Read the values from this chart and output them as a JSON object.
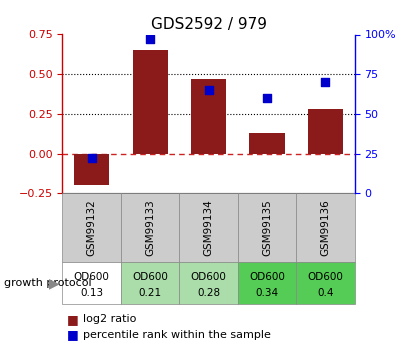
{
  "title": "GDS2592 / 979",
  "samples": [
    "GSM99132",
    "GSM99133",
    "GSM99134",
    "GSM99135",
    "GSM99136"
  ],
  "log2_ratio": [
    -0.2,
    0.65,
    0.47,
    0.13,
    0.28
  ],
  "percentile_rank": [
    22,
    97,
    65,
    60,
    70
  ],
  "bar_color": "#8B1A1A",
  "dot_color": "#0000CC",
  "ylim_left": [
    -0.25,
    0.75
  ],
  "yticks_left": [
    -0.25,
    0,
    0.25,
    0.5,
    0.75
  ],
  "yticks_right": [
    0,
    25,
    50,
    75,
    100
  ],
  "right_axis_label_positions": [
    0,
    25,
    50,
    75,
    100
  ],
  "protocol_labels_line1": [
    "OD600",
    "OD600",
    "OD600",
    "OD600",
    "OD600"
  ],
  "protocol_labels_line2": [
    "0.13",
    "0.21",
    "0.28",
    "0.34",
    "0.4"
  ],
  "protocol_bg_colors": [
    "#ffffff",
    "#aaddaa",
    "#aaddaa",
    "#55cc55",
    "#55cc55"
  ],
  "xlabel_area_color": "#cccccc",
  "legend_red": "log2 ratio",
  "legend_blue": "percentile rank within the sample",
  "growth_label": "growth protocol"
}
